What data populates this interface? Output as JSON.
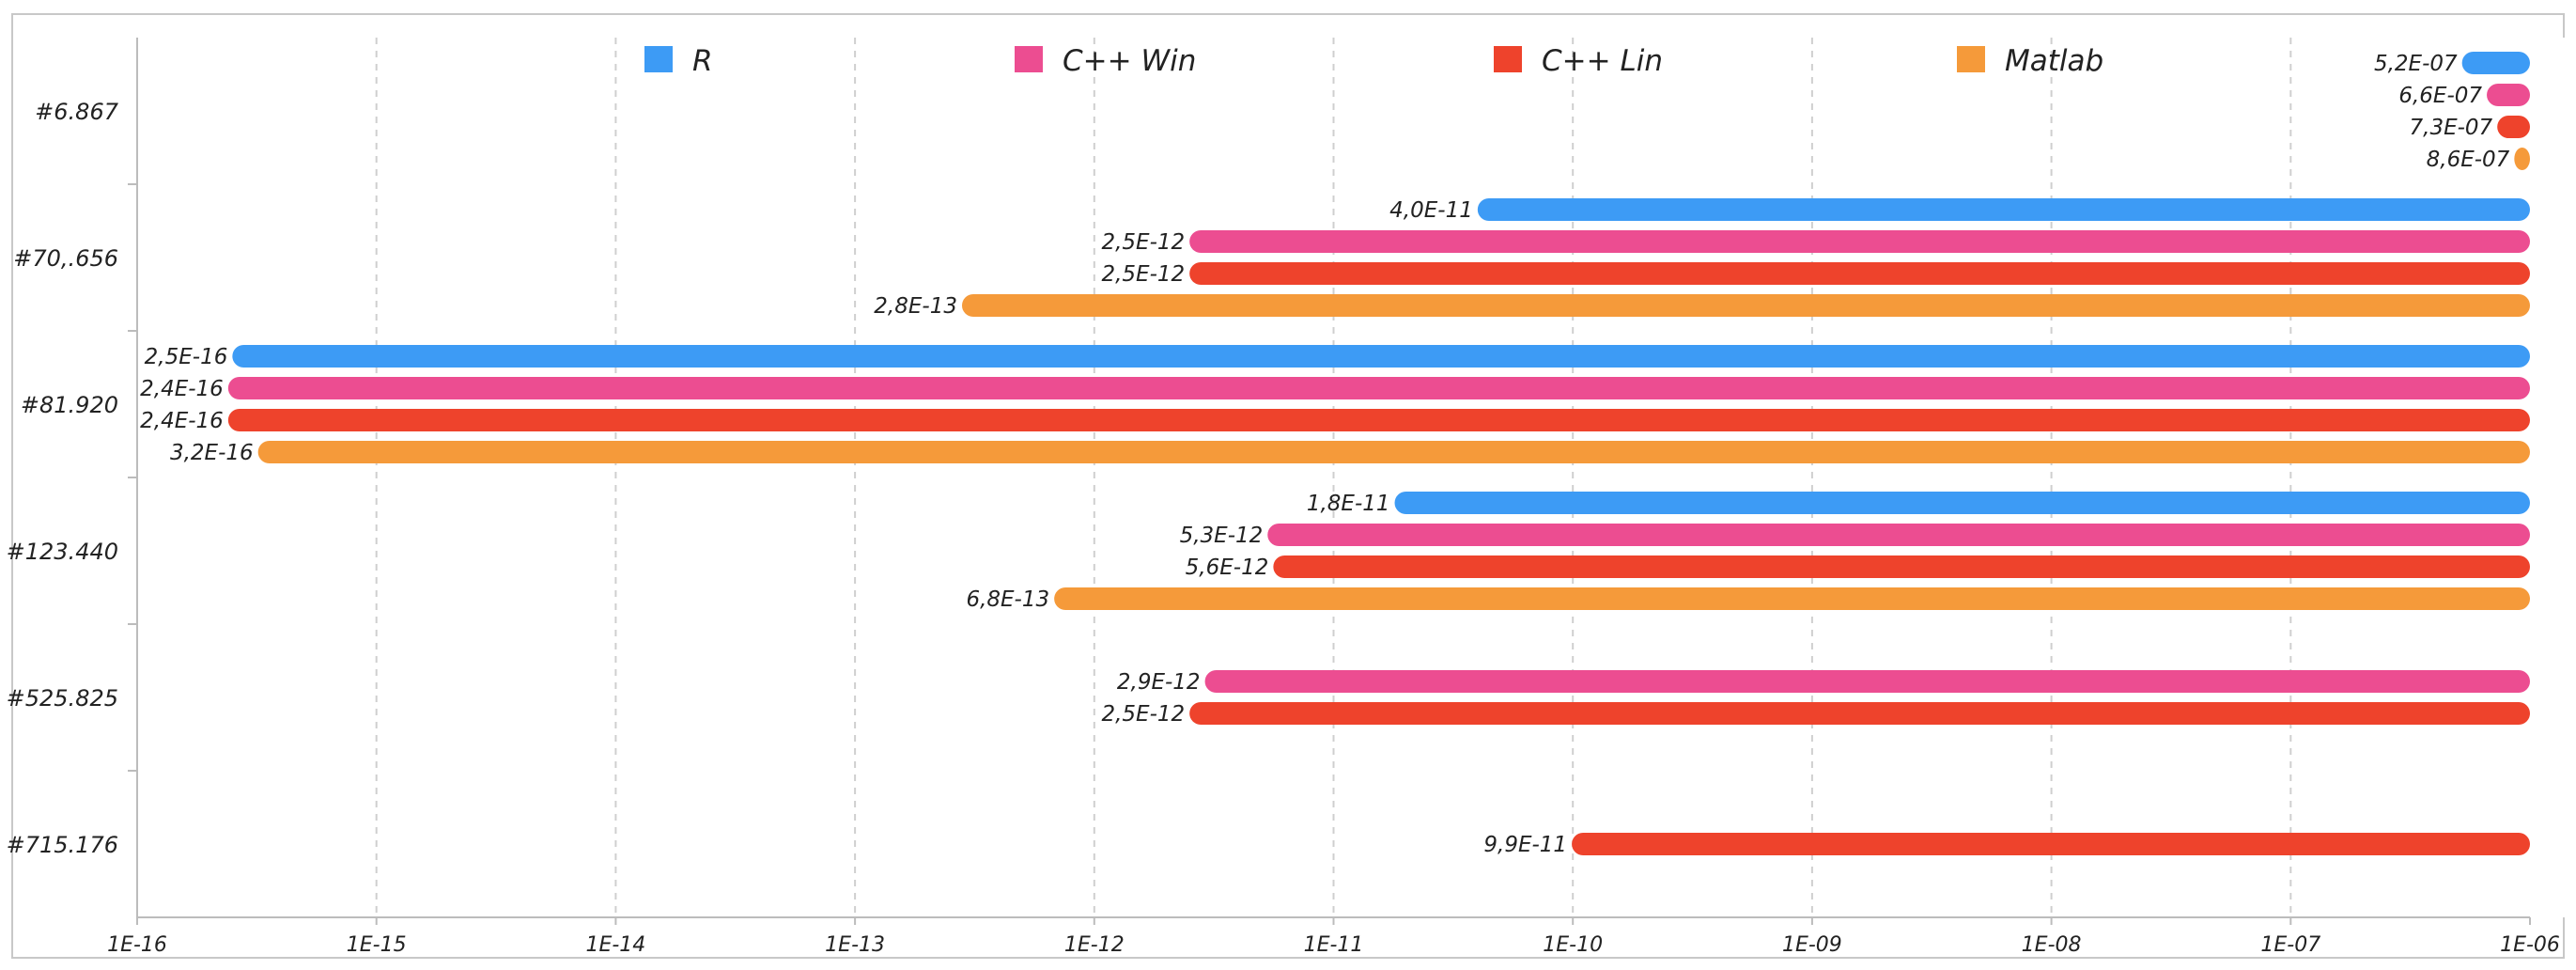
{
  "chart_data": {
    "type": "bar",
    "orientation": "horizontal",
    "x_scale": "log",
    "xlim": [
      1e-16,
      1e-06
    ],
    "x_ticks": [
      "1E-16",
      "1E-15",
      "1E-14",
      "1E-13",
      "1E-12",
      "1E-11",
      "1E-10",
      "1E-09",
      "1E-08",
      "1E-07",
      "1E-06"
    ],
    "grid": "vertical dashed",
    "legend_position": "top",
    "categories": [
      "#6.867",
      "#70,.656",
      "#81.920",
      "#123.440",
      "#525.825",
      "#715.176"
    ],
    "series": [
      {
        "name": "R",
        "color": "#3d9bf5",
        "values": [
          5.2e-07,
          4e-11,
          2.5e-16,
          1.8e-11,
          null,
          null
        ],
        "labels": [
          "5,2E-07",
          "4,0E-11",
          "2,5E-16",
          "1,8E-11",
          "",
          ""
        ]
      },
      {
        "name": "C++ Win",
        "color": "#ec4d91",
        "values": [
          6.6e-07,
          2.5e-12,
          2.4e-16,
          5.3e-12,
          2.9e-12,
          null
        ],
        "labels": [
          "6,6E-07",
          "2,5E-12",
          "2,4E-16",
          "5,3E-12",
          "2,9E-12",
          ""
        ]
      },
      {
        "name": "C++ Lin",
        "color": "#ee432c",
        "values": [
          7.3e-07,
          2.5e-12,
          2.4e-16,
          5.6e-12,
          2.5e-12,
          9.9e-11
        ],
        "labels": [
          "7,3E-07",
          "2,5E-12",
          "2,4E-16",
          "5,6E-12",
          "2,5E-12",
          "9,9E-11"
        ]
      },
      {
        "name": "Matlab",
        "color": "#f59a3a",
        "values": [
          8.6e-07,
          2.8e-13,
          3.2e-16,
          6.8e-13,
          null,
          null
        ],
        "labels": [
          "8,6E-07",
          "2,8E-13",
          "3,2E-16",
          "6,8E-13",
          "",
          ""
        ]
      }
    ]
  }
}
